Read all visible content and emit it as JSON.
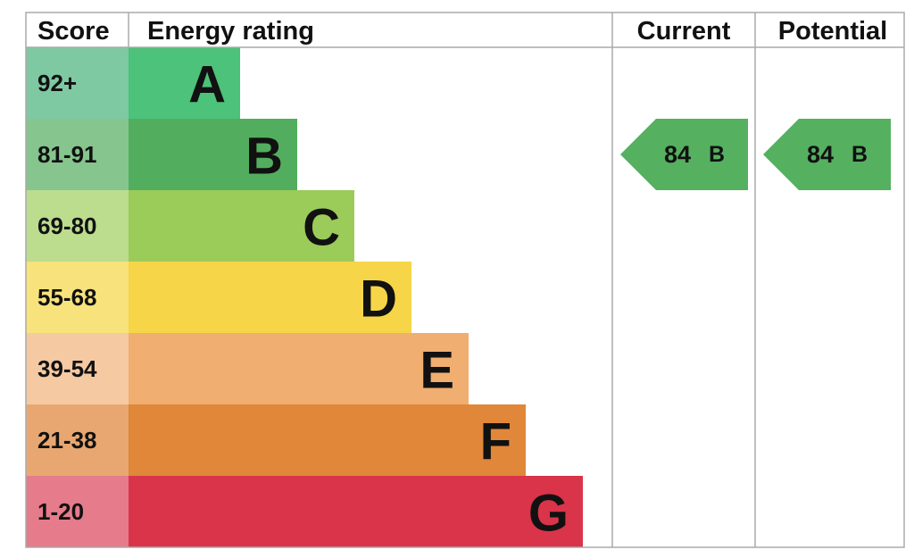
{
  "header": {
    "score": "Score",
    "rating": "Energy rating",
    "current": "Current",
    "potential": "Potential"
  },
  "bands": [
    {
      "score": "92+",
      "letter": "A",
      "color": "#4cc27a",
      "score_color": "#7ec9a2"
    },
    {
      "score": "81-91",
      "letter": "B",
      "color": "#52ae5e",
      "score_color": "#86c58d"
    },
    {
      "score": "69-80",
      "letter": "C",
      "color": "#9bcb59",
      "score_color": "#bcdc8e"
    },
    {
      "score": "55-68",
      "letter": "D",
      "color": "#f6d548",
      "score_color": "#f8e27c"
    },
    {
      "score": "39-54",
      "letter": "E",
      "color": "#f0ae70",
      "score_color": "#f5c9a2"
    },
    {
      "score": "21-38",
      "letter": "F",
      "color": "#e08739",
      "score_color": "#e8a770"
    },
    {
      "score": "1-20",
      "letter": "G",
      "color": "#d9344a",
      "score_color": "#e57b8b"
    }
  ],
  "current": {
    "score": 84,
    "letter": "B",
    "color": "#55b060"
  },
  "potential": {
    "score": 84,
    "letter": "B",
    "color": "#55b060"
  }
}
